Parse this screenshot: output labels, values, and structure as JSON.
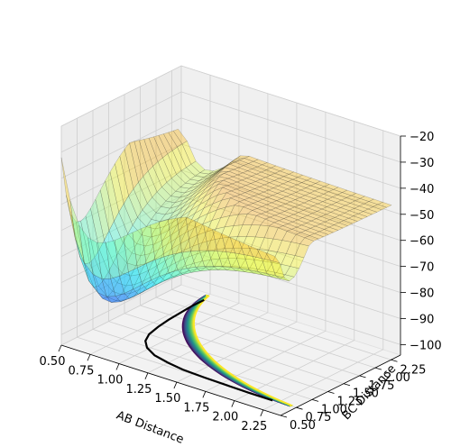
{
  "chart_data": {
    "type": "surface3d",
    "title": "",
    "xlabel": "AB Distance",
    "ylabel": "BC Distance",
    "zlabel": "",
    "xlim": [
      0.5,
      2.4
    ],
    "ylim": [
      0.5,
      2.4
    ],
    "zlim": [
      -104,
      -20
    ],
    "x_ticks": [
      0.5,
      0.75,
      1.0,
      1.25,
      1.5,
      1.75,
      2.0,
      2.25
    ],
    "x_tick_labels": [
      "0.50",
      "0.75",
      "1.00",
      "1.25",
      "1.50",
      "1.75",
      "2.00",
      "2.25"
    ],
    "y_ticks": [
      0.5,
      0.75,
      1.0,
      1.25,
      1.5,
      1.75,
      2.0,
      2.25
    ],
    "y_tick_labels": [
      "0.50",
      "0.75",
      "1.00",
      "1.25",
      "1.50",
      "1.75",
      "2.00",
      "2.25"
    ],
    "z_ticks": [
      -100,
      -90,
      -80,
      -70,
      -60,
      -50,
      -40,
      -30,
      -20
    ],
    "z_tick_labels": [
      "−100",
      "−90",
      "−80",
      "−70",
      "−60",
      "−50",
      "−40",
      "−30",
      "−20"
    ],
    "grid": true,
    "surface_colormap": "jet (translucent)",
    "contour_colormap": "viridis",
    "contour_levels": [
      -101,
      -99,
      -97,
      -95,
      -93,
      -91,
      -89,
      -87,
      -85,
      -83,
      -81,
      -79,
      -77,
      -75,
      -73,
      -71,
      -69,
      -67,
      -65,
      -63,
      -61,
      -59,
      -57,
      -55
    ],
    "trajectory": {
      "color": "#000000",
      "x": [
        2.2,
        2.0,
        1.8,
        1.6,
        1.4,
        1.25,
        1.1,
        0.98,
        0.9,
        0.85,
        0.82,
        0.8,
        0.79,
        0.78,
        0.78
      ],
      "y": [
        0.74,
        0.74,
        0.75,
        0.76,
        0.78,
        0.82,
        0.88,
        0.98,
        1.1,
        1.25,
        1.45,
        1.65,
        1.85,
        2.05,
        2.25
      ]
    }
  }
}
